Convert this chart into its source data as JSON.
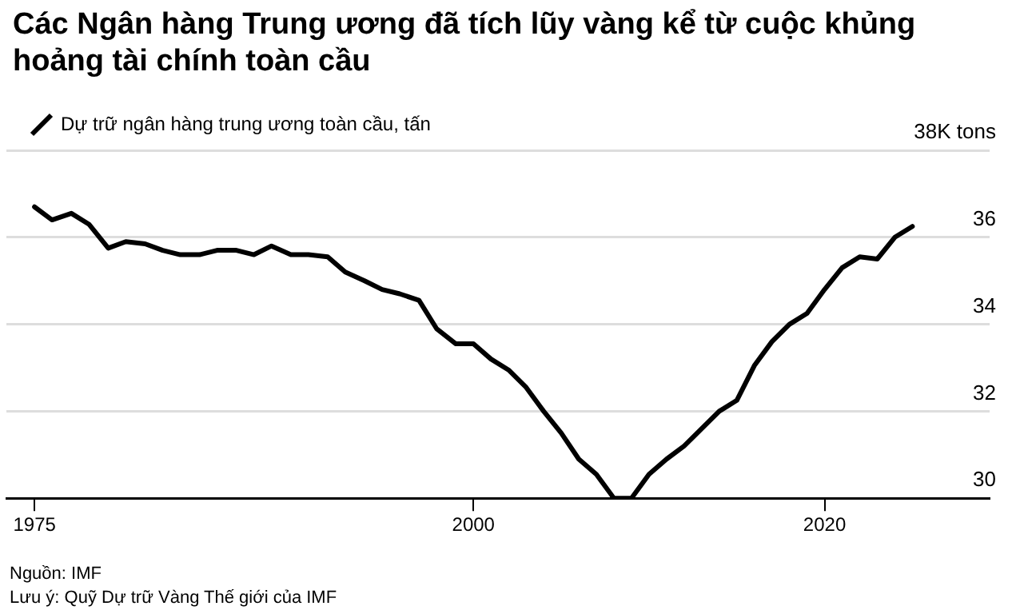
{
  "chart_data": {
    "type": "line",
    "title": "Các Ngân hàng Trung ương đã tích lũy vàng kể từ cuộc khủng hoảng tài chính toàn cầu",
    "series": [
      {
        "name": "Dự trữ ngân hàng trung ương toàn cầu, tấn",
        "color": "#000000",
        "x": [
          1975.0,
          1976.0,
          1977.1,
          1978.1,
          1979.2,
          1980.2,
          1981.3,
          1982.3,
          1983.3,
          1984.4,
          1985.4,
          1986.5,
          1987.5,
          1988.5,
          1989.6,
          1990.6,
          1991.7,
          1992.7,
          1993.8,
          1994.8,
          1995.8,
          1996.9,
          1997.9,
          1999.0,
          2000.0,
          2001,
          2002,
          2003,
          2004,
          2005,
          2006,
          2007,
          2008,
          2009,
          2010,
          2011,
          2012,
          2013,
          2014,
          2015,
          2016,
          2017,
          2018,
          2019,
          2020,
          2021,
          2022,
          2023,
          2024,
          2025
        ],
        "values": [
          36.7,
          36.4,
          36.55,
          36.3,
          35.75,
          35.9,
          35.85,
          35.7,
          35.6,
          35.6,
          35.7,
          35.7,
          35.6,
          35.8,
          35.6,
          35.6,
          35.55,
          35.2,
          35.0,
          34.8,
          34.7,
          34.55,
          33.9,
          33.55,
          33.55,
          33.2,
          32.95,
          32.55,
          32.0,
          31.5,
          30.9,
          30.55,
          30.0,
          30.0,
          30.55,
          30.9,
          31.2,
          31.6,
          32.0,
          32.25,
          33.05,
          33.6,
          34.0,
          34.25,
          34.8,
          35.3,
          35.55,
          35.5,
          36.0,
          36.25
        ]
      }
    ],
    "xlim": [
      1973.4,
      2029.4
    ],
    "xticks": [
      1975,
      2000,
      2020
    ],
    "ylim": [
      30,
      38
    ],
    "yticks": [
      30,
      32,
      34,
      36,
      {
        "value": 38,
        "label": "38K tons"
      }
    ],
    "grid": "y",
    "legend": "top left",
    "marker": "none",
    "line_style": "solid",
    "annotations": [
      "Nguồn: IMF",
      "Lưu ý: Quỹ Dự trữ Vàng Thế giới của IMF"
    ]
  }
}
